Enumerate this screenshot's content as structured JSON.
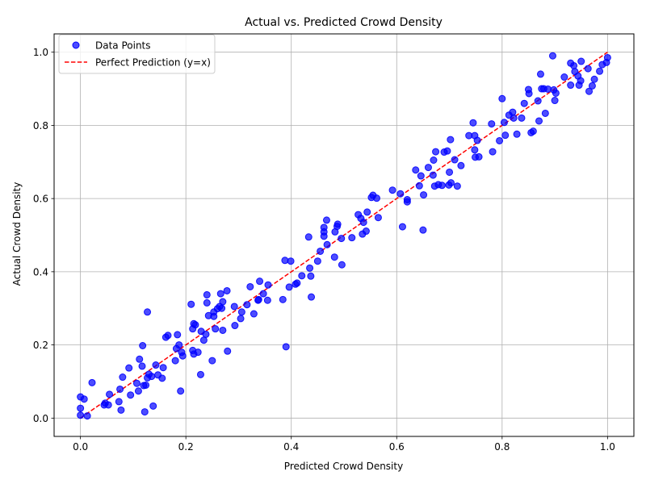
{
  "chart_data": {
    "type": "scatter",
    "title": "Actual vs. Predicted Crowd Density",
    "xlabel": "Predicted Crowd Density",
    "ylabel": "Actual Crowd Density",
    "xlim": [
      -0.05,
      1.05
    ],
    "ylim": [
      -0.05,
      1.05
    ],
    "xticks": [
      "0.0",
      "0.2",
      "0.4",
      "0.6",
      "0.8",
      "1.0"
    ],
    "yticks": [
      "0.0",
      "0.2",
      "0.4",
      "0.6",
      "0.8",
      "1.0"
    ],
    "xtick_values": [
      0.0,
      0.2,
      0.4,
      0.6,
      0.8,
      1.0
    ],
    "ytick_values": [
      0.0,
      0.2,
      0.4,
      0.6,
      0.8,
      1.0
    ],
    "grid": true,
    "legend_position": "upper-left",
    "colors": {
      "points": "#0000ff",
      "reference_line": "#ff0000"
    },
    "series": [
      {
        "name": "Data Points",
        "kind": "scatter",
        "points": [
          [
            0.0,
            0.058
          ],
          [
            0.0,
            0.027
          ],
          [
            0.0,
            0.008
          ],
          [
            0.007,
            0.052
          ],
          [
            0.013,
            0.006
          ],
          [
            0.022,
            0.097
          ],
          [
            0.045,
            0.036
          ],
          [
            0.047,
            0.041
          ],
          [
            0.053,
            0.036
          ],
          [
            0.055,
            0.065
          ],
          [
            0.073,
            0.045
          ],
          [
            0.075,
            0.079
          ],
          [
            0.077,
            0.022
          ],
          [
            0.08,
            0.112
          ],
          [
            0.092,
            0.137
          ],
          [
            0.095,
            0.063
          ],
          [
            0.107,
            0.095
          ],
          [
            0.11,
            0.074
          ],
          [
            0.112,
            0.161
          ],
          [
            0.117,
            0.142
          ],
          [
            0.118,
            0.198
          ],
          [
            0.12,
            0.089
          ],
          [
            0.122,
            0.017
          ],
          [
            0.124,
            0.09
          ],
          [
            0.127,
            0.11
          ],
          [
            0.127,
            0.29
          ],
          [
            0.13,
            0.12
          ],
          [
            0.135,
            0.114
          ],
          [
            0.138,
            0.033
          ],
          [
            0.143,
            0.145
          ],
          [
            0.147,
            0.118
          ],
          [
            0.155,
            0.109
          ],
          [
            0.157,
            0.138
          ],
          [
            0.162,
            0.221
          ],
          [
            0.166,
            0.226
          ],
          [
            0.18,
            0.157
          ],
          [
            0.182,
            0.19
          ],
          [
            0.184,
            0.228
          ],
          [
            0.187,
            0.2
          ],
          [
            0.19,
            0.074
          ],
          [
            0.192,
            0.18
          ],
          [
            0.194,
            0.17
          ],
          [
            0.21,
            0.311
          ],
          [
            0.213,
            0.244
          ],
          [
            0.213,
            0.185
          ],
          [
            0.215,
            0.175
          ],
          [
            0.215,
            0.258
          ],
          [
            0.218,
            0.255
          ],
          [
            0.223,
            0.18
          ],
          [
            0.228,
            0.119
          ],
          [
            0.229,
            0.237
          ],
          [
            0.234,
            0.213
          ],
          [
            0.238,
            0.229
          ],
          [
            0.24,
            0.315
          ],
          [
            0.24,
            0.337
          ],
          [
            0.243,
            0.28
          ],
          [
            0.25,
            0.157
          ],
          [
            0.253,
            0.29
          ],
          [
            0.253,
            0.278
          ],
          [
            0.256,
            0.244
          ],
          [
            0.26,
            0.299
          ],
          [
            0.264,
            0.305
          ],
          [
            0.266,
            0.34
          ],
          [
            0.268,
            0.3
          ],
          [
            0.27,
            0.318
          ],
          [
            0.27,
            0.24
          ],
          [
            0.278,
            0.348
          ],
          [
            0.279,
            0.183
          ],
          [
            0.292,
            0.305
          ],
          [
            0.293,
            0.253
          ],
          [
            0.304,
            0.272
          ],
          [
            0.306,
            0.29
          ],
          [
            0.316,
            0.31
          ],
          [
            0.322,
            0.359
          ],
          [
            0.329,
            0.285
          ],
          [
            0.337,
            0.322
          ],
          [
            0.338,
            0.324
          ],
          [
            0.34,
            0.374
          ],
          [
            0.347,
            0.34
          ],
          [
            0.355,
            0.322
          ],
          [
            0.356,
            0.364
          ],
          [
            0.384,
            0.324
          ],
          [
            0.388,
            0.431
          ],
          [
            0.39,
            0.195
          ],
          [
            0.396,
            0.358
          ],
          [
            0.399,
            0.429
          ],
          [
            0.408,
            0.366
          ],
          [
            0.411,
            0.369
          ],
          [
            0.42,
            0.389
          ],
          [
            0.433,
            0.495
          ],
          [
            0.435,
            0.41
          ],
          [
            0.437,
            0.388
          ],
          [
            0.438,
            0.331
          ],
          [
            0.45,
            0.429
          ],
          [
            0.455,
            0.456
          ],
          [
            0.462,
            0.497
          ],
          [
            0.462,
            0.509
          ],
          [
            0.462,
            0.521
          ],
          [
            0.467,
            0.541
          ],
          [
            0.468,
            0.474
          ],
          [
            0.482,
            0.44
          ],
          [
            0.483,
            0.509
          ],
          [
            0.487,
            0.524
          ],
          [
            0.488,
            0.53
          ],
          [
            0.495,
            0.491
          ],
          [
            0.496,
            0.419
          ],
          [
            0.515,
            0.493
          ],
          [
            0.527,
            0.556
          ],
          [
            0.532,
            0.546
          ],
          [
            0.535,
            0.503
          ],
          [
            0.537,
            0.535
          ],
          [
            0.542,
            0.511
          ],
          [
            0.544,
            0.563
          ],
          [
            0.552,
            0.603
          ],
          [
            0.555,
            0.609
          ],
          [
            0.562,
            0.601
          ],
          [
            0.565,
            0.548
          ],
          [
            0.592,
            0.623
          ],
          [
            0.607,
            0.613
          ],
          [
            0.611,
            0.523
          ],
          [
            0.62,
            0.591
          ],
          [
            0.62,
            0.597
          ],
          [
            0.636,
            0.678
          ],
          [
            0.643,
            0.635
          ],
          [
            0.646,
            0.662
          ],
          [
            0.65,
            0.514
          ],
          [
            0.651,
            0.61
          ],
          [
            0.66,
            0.685
          ],
          [
            0.669,
            0.664
          ],
          [
            0.67,
            0.705
          ],
          [
            0.672,
            0.634
          ],
          [
            0.674,
            0.728
          ],
          [
            0.679,
            0.638
          ],
          [
            0.686,
            0.636
          ],
          [
            0.69,
            0.727
          ],
          [
            0.696,
            0.73
          ],
          [
            0.699,
            0.637
          ],
          [
            0.7,
            0.672
          ],
          [
            0.702,
            0.761
          ],
          [
            0.703,
            0.643
          ],
          [
            0.71,
            0.706
          ],
          [
            0.715,
            0.634
          ],
          [
            0.722,
            0.69
          ],
          [
            0.737,
            0.772
          ],
          [
            0.745,
            0.807
          ],
          [
            0.748,
            0.733
          ],
          [
            0.748,
            0.772
          ],
          [
            0.749,
            0.713
          ],
          [
            0.753,
            0.759
          ],
          [
            0.756,
            0.714
          ],
          [
            0.78,
            0.804
          ],
          [
            0.782,
            0.728
          ],
          [
            0.795,
            0.758
          ],
          [
            0.8,
            0.873
          ],
          [
            0.804,
            0.808
          ],
          [
            0.806,
            0.773
          ],
          [
            0.813,
            0.828
          ],
          [
            0.82,
            0.836
          ],
          [
            0.822,
            0.82
          ],
          [
            0.828,
            0.776
          ],
          [
            0.837,
            0.82
          ],
          [
            0.842,
            0.86
          ],
          [
            0.85,
            0.898
          ],
          [
            0.851,
            0.887
          ],
          [
            0.855,
            0.78
          ],
          [
            0.859,
            0.784
          ],
          [
            0.868,
            0.867
          ],
          [
            0.87,
            0.812
          ],
          [
            0.873,
            0.94
          ],
          [
            0.875,
            0.9
          ],
          [
            0.879,
            0.9
          ],
          [
            0.882,
            0.833
          ],
          [
            0.887,
            0.899
          ],
          [
            0.896,
            0.99
          ],
          [
            0.898,
            0.897
          ],
          [
            0.9,
            0.868
          ],
          [
            0.902,
            0.888
          ],
          [
            0.918,
            0.932
          ],
          [
            0.93,
            0.91
          ],
          [
            0.93,
            0.97
          ],
          [
            0.936,
            0.963
          ],
          [
            0.938,
            0.947
          ],
          [
            0.944,
            0.935
          ],
          [
            0.946,
            0.91
          ],
          [
            0.949,
            0.922
          ],
          [
            0.95,
            0.975
          ],
          [
            0.963,
            0.955
          ],
          [
            0.965,
            0.893
          ],
          [
            0.971,
            0.908
          ],
          [
            0.975,
            0.926
          ],
          [
            0.985,
            0.948
          ],
          [
            0.99,
            0.966
          ],
          [
            0.998,
            0.972
          ],
          [
            1.0,
            0.985
          ]
        ]
      },
      {
        "name": "Perfect Prediction (y=x)",
        "kind": "line",
        "points": [
          [
            0.0,
            0.0
          ],
          [
            1.0,
            1.0
          ]
        ]
      }
    ]
  }
}
